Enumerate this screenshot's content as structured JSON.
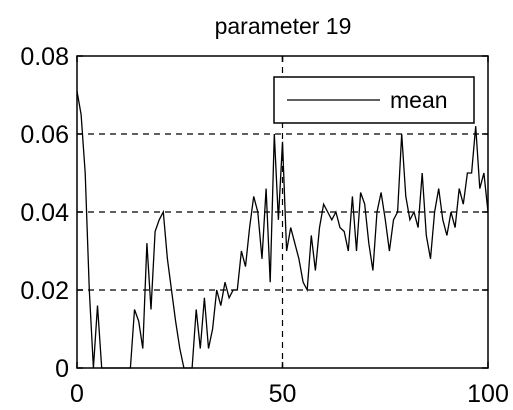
{
  "chart_data": {
    "type": "line",
    "title": "parameter 19",
    "xlabel": "",
    "ylabel": "",
    "xlim": [
      0,
      100
    ],
    "ylim": [
      0,
      0.08
    ],
    "x_ticks": [
      "0",
      "50",
      "100"
    ],
    "y_ticks": [
      "0",
      "0.02",
      "0.04",
      "0.06",
      "0.08"
    ],
    "x_tick_values": [
      0,
      50,
      100
    ],
    "y_tick_values": [
      0,
      0.02,
      0.04,
      0.06,
      0.08
    ],
    "grid": true,
    "legend_position": "top-right",
    "series": [
      {
        "name": "mean",
        "color": "#000000",
        "x": [
          0,
          1,
          2,
          3,
          4,
          5,
          6,
          7,
          8,
          9,
          10,
          11,
          12,
          13,
          14,
          15,
          16,
          17,
          18,
          19,
          20,
          21,
          22,
          23,
          24,
          25,
          26,
          27,
          28,
          29,
          30,
          31,
          32,
          33,
          34,
          35,
          36,
          37,
          38,
          39,
          40,
          41,
          42,
          43,
          44,
          45,
          46,
          47,
          48,
          49,
          50,
          51,
          52,
          53,
          54,
          55,
          56,
          57,
          58,
          59,
          60,
          61,
          62,
          63,
          64,
          65,
          66,
          67,
          68,
          69,
          70,
          71,
          72,
          73,
          74,
          75,
          76,
          77,
          78,
          79,
          80,
          81,
          82,
          83,
          84,
          85,
          86,
          87,
          88,
          89,
          90,
          91,
          92,
          93,
          94,
          95,
          96,
          97,
          98,
          99,
          100
        ],
        "values": [
          0.071,
          0.065,
          0.05,
          0.02,
          0,
          0.016,
          0,
          0,
          0,
          0,
          0,
          0,
          0,
          0,
          0.015,
          0.012,
          0.005,
          0.032,
          0.015,
          0.035,
          0.038,
          0.04,
          0.028,
          0.02,
          0.012,
          0.005,
          0,
          0,
          0,
          0.015,
          0.005,
          0.018,
          0.005,
          0.01,
          0.02,
          0.016,
          0.022,
          0.018,
          0.02,
          0.02,
          0.03,
          0.026,
          0.036,
          0.044,
          0.04,
          0.028,
          0.046,
          0.022,
          0.06,
          0.038,
          0.058,
          0.03,
          0.036,
          0.032,
          0.028,
          0.022,
          0.02,
          0.034,
          0.025,
          0.036,
          0.042,
          0.04,
          0.038,
          0.04,
          0.036,
          0.035,
          0.03,
          0.044,
          0.03,
          0.045,
          0.042,
          0.032,
          0.025,
          0.04,
          0.045,
          0.038,
          0.03,
          0.038,
          0.04,
          0.06,
          0.044,
          0.038,
          0.04,
          0.036,
          0.05,
          0.034,
          0.028,
          0.04,
          0.046,
          0.038,
          0.034,
          0.04,
          0.036,
          0.046,
          0.042,
          0.05,
          0.05,
          0.062,
          0.046,
          0.05,
          0.04
        ]
      }
    ]
  }
}
